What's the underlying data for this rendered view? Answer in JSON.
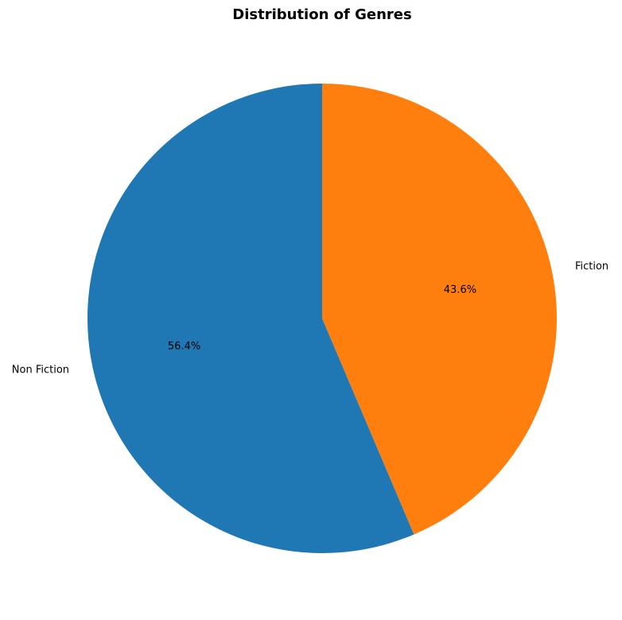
{
  "chart_data": {
    "type": "pie",
    "title": "Distribution of Genres",
    "start_angle_deg": 90,
    "direction": "counterclockwise",
    "slices": [
      {
        "label": "Non Fiction",
        "value": 56.4,
        "pct_label": "56.4%",
        "color": "#1f77b4"
      },
      {
        "label": "Fiction",
        "value": 43.6,
        "pct_label": "43.6%",
        "color": "#ff7f0e"
      }
    ]
  }
}
